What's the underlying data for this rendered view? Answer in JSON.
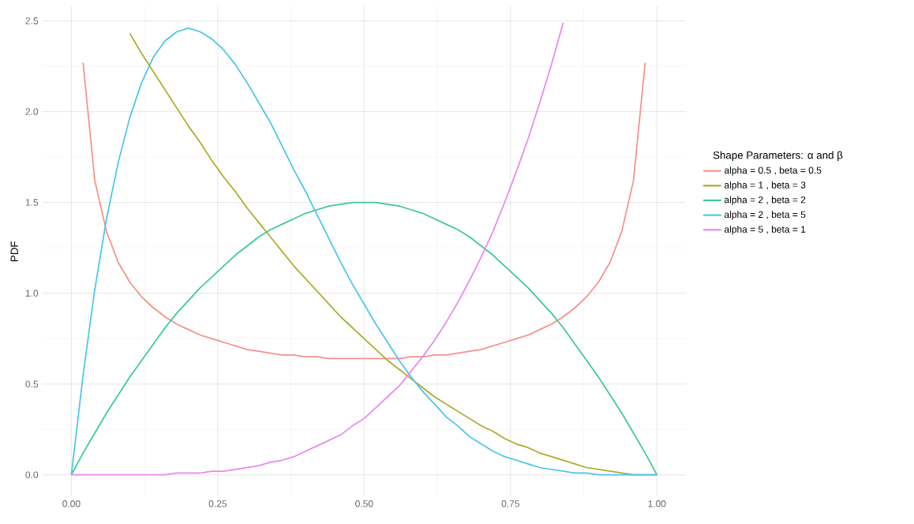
{
  "chart_data": {
    "type": "line",
    "ylabel": "PDF",
    "legend_title": "Shape Parameters: α and β",
    "legend": "right",
    "grid": true,
    "marker": "none",
    "line_style": "solid",
    "xlim": [
      -0.05,
      1.05
    ],
    "ylim": [
      -0.12,
      2.58
    ],
    "xticks": [
      {
        "value": 0,
        "label": "0.00"
      },
      {
        "value": 0.25,
        "label": "0.25"
      },
      {
        "value": 0.5,
        "label": "0.50"
      },
      {
        "value": 0.75,
        "label": "0.75"
      },
      {
        "value": 1,
        "label": "1.00"
      }
    ],
    "yticks": [
      {
        "value": 0,
        "label": "0.0"
      },
      {
        "value": 0.5,
        "label": "0.5"
      },
      {
        "value": 1,
        "label": "1.0"
      },
      {
        "value": 1.5,
        "label": "1.5"
      },
      {
        "value": 2,
        "label": "2.0"
      },
      {
        "value": 2.5,
        "label": "2.5"
      }
    ],
    "x": [
      0,
      0.02,
      0.04,
      0.06,
      0.08,
      0.1,
      0.12,
      0.14,
      0.16,
      0.18,
      0.2,
      0.22,
      0.24,
      0.26,
      0.28,
      0.3,
      0.32,
      0.34,
      0.36,
      0.38,
      0.4,
      0.42,
      0.44,
      0.46,
      0.48,
      0.5,
      0.52,
      0.54,
      0.56,
      0.58,
      0.6,
      0.62,
      0.64,
      0.66,
      0.68,
      0.7,
      0.72,
      0.74,
      0.76,
      0.78,
      0.8,
      0.82,
      0.84,
      0.86,
      0.88,
      0.9,
      0.92,
      0.94,
      0.96,
      0.98,
      1
    ],
    "series": [
      {
        "name": "alpha = 0.5 ,  beta = 0.5",
        "color": "#f4928a",
        "values": [
          null,
          2.27,
          1.62,
          1.34,
          1.17,
          1.06,
          0.98,
          0.92,
          0.87,
          0.83,
          0.8,
          0.77,
          0.75,
          0.73,
          0.71,
          0.69,
          0.68,
          0.67,
          0.66,
          0.66,
          0.65,
          0.65,
          0.64,
          0.64,
          0.64,
          0.64,
          0.64,
          0.64,
          0.64,
          0.65,
          0.65,
          0.66,
          0.66,
          0.67,
          0.68,
          0.69,
          0.71,
          0.73,
          0.75,
          0.77,
          0.8,
          0.83,
          0.87,
          0.92,
          0.98,
          1.06,
          1.17,
          1.34,
          1.62,
          2.27,
          null
        ]
      },
      {
        "name": "alpha = 1 ,  beta = 3",
        "color": "#aeaa2c",
        "values": [
          null,
          null,
          null,
          null,
          null,
          2.43,
          2.32,
          2.22,
          2.12,
          2.02,
          1.92,
          1.83,
          1.73,
          1.64,
          1.56,
          1.47,
          1.39,
          1.31,
          1.23,
          1.15,
          1.08,
          1.01,
          0.94,
          0.87,
          0.81,
          0.75,
          0.69,
          0.63,
          0.58,
          0.53,
          0.48,
          0.43,
          0.39,
          0.35,
          0.31,
          0.27,
          0.24,
          0.2,
          0.17,
          0.15,
          0.12,
          0.1,
          0.08,
          0.06,
          0.04,
          0.03,
          0.02,
          0.01,
          0.0,
          0.0,
          0
        ]
      },
      {
        "name": "alpha = 2 ,  beta = 2",
        "color": "#3cc89a",
        "values": [
          0,
          0.12,
          0.23,
          0.34,
          0.44,
          0.54,
          0.63,
          0.72,
          0.81,
          0.89,
          0.96,
          1.03,
          1.09,
          1.15,
          1.21,
          1.26,
          1.31,
          1.35,
          1.38,
          1.41,
          1.44,
          1.46,
          1.48,
          1.49,
          1.5,
          1.5,
          1.5,
          1.49,
          1.48,
          1.46,
          1.44,
          1.41,
          1.38,
          1.35,
          1.31,
          1.26,
          1.21,
          1.15,
          1.09,
          1.03,
          0.96,
          0.89,
          0.81,
          0.72,
          0.63,
          0.54,
          0.44,
          0.34,
          0.23,
          0.12,
          0
        ]
      },
      {
        "name": "alpha = 2 ,  beta = 5",
        "color": "#4cc4ec",
        "values": [
          0,
          0.55,
          1.02,
          1.41,
          1.72,
          1.97,
          2.16,
          2.3,
          2.39,
          2.44,
          2.46,
          2.44,
          2.4,
          2.34,
          2.26,
          2.16,
          2.05,
          1.94,
          1.81,
          1.68,
          1.56,
          1.43,
          1.3,
          1.17,
          1.05,
          0.94,
          0.83,
          0.73,
          0.63,
          0.54,
          0.46,
          0.39,
          0.32,
          0.27,
          0.21,
          0.17,
          0.13,
          0.1,
          0.08,
          0.06,
          0.04,
          0.03,
          0.02,
          0.01,
          0.01,
          0.0,
          0.0,
          0.0,
          0,
          0,
          0
        ]
      },
      {
        "name": "alpha = 5 ,  beta = 1",
        "color": "#e888ee",
        "values": [
          0,
          0,
          0,
          0,
          0,
          0.0,
          0.0,
          0.0,
          0.0,
          0.01,
          0.01,
          0.01,
          0.02,
          0.02,
          0.03,
          0.04,
          0.05,
          0.07,
          0.08,
          0.1,
          0.13,
          0.16,
          0.19,
          0.22,
          0.27,
          0.31,
          0.37,
          0.43,
          0.49,
          0.57,
          0.65,
          0.74,
          0.84,
          0.95,
          1.07,
          1.2,
          1.34,
          1.5,
          1.67,
          1.85,
          2.05,
          2.26,
          2.49,
          null,
          null,
          null,
          null,
          null,
          null,
          null,
          null
        ]
      }
    ]
  }
}
